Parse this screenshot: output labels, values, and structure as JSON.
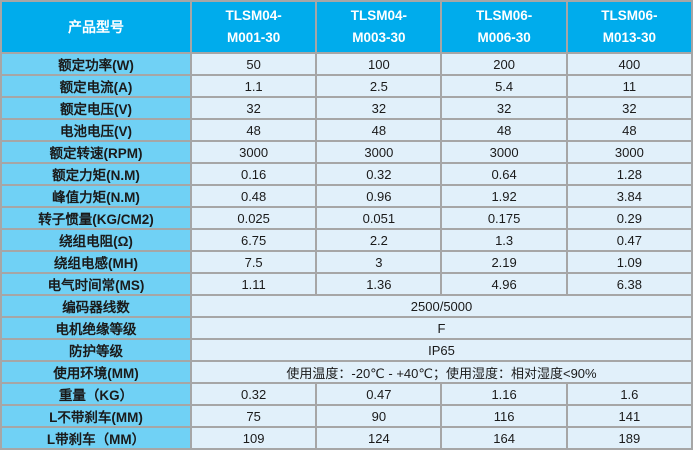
{
  "colors": {
    "header-bg": "#00acec",
    "label-bg": "#70d1f5",
    "cell-bg": "#e1f0fa",
    "grid": "#a6a6a6",
    "header-text": "#ffffff",
    "body-text": "#1a1a1a"
  },
  "table": {
    "header": {
      "label": "产品型号",
      "models": [
        "TLSM04-\nM001-30",
        "TLSM04-\nM003-30",
        "TLSM06-\nM006-30",
        "TLSM06-\nM013-30"
      ]
    },
    "rows": [
      {
        "label": "额定功率(W)",
        "values": [
          "50",
          "100",
          "200",
          "400"
        ]
      },
      {
        "label": "额定电流(A)",
        "values": [
          "1.1",
          "2.5",
          "5.4",
          "11"
        ]
      },
      {
        "label": "额定电压(V)",
        "values": [
          "32",
          "32",
          "32",
          "32"
        ]
      },
      {
        "label": "电池电压(V)",
        "values": [
          "48",
          "48",
          "48",
          "48"
        ]
      },
      {
        "label": "额定转速(RPM)",
        "values": [
          "3000",
          "3000",
          "3000",
          "3000"
        ]
      },
      {
        "label": "额定力矩(N.M)",
        "values": [
          "0.16",
          "0.32",
          "0.64",
          "1.28"
        ]
      },
      {
        "label": "峰值力矩(N.M)",
        "values": [
          "0.48",
          "0.96",
          "1.92",
          "3.84"
        ]
      },
      {
        "label": "转子惯量(KG/CM2)",
        "values": [
          "0.025",
          "0.051",
          "0.175",
          "0.29"
        ]
      },
      {
        "label": "绕组电阻(Ω)",
        "values": [
          "6.75",
          "2.2",
          "1.3",
          "0.47"
        ]
      },
      {
        "label": "绕组电感(MH)",
        "values": [
          "7.5",
          "3",
          "2.19",
          "1.09"
        ]
      },
      {
        "label": "电气时间常(MS)",
        "values": [
          "1.11",
          "1.36",
          "4.96",
          "6.38"
        ]
      },
      {
        "label": "编码器线数",
        "span": "2500/5000"
      },
      {
        "label": "电机绝缘等级",
        "span": "F"
      },
      {
        "label": "防护等级",
        "span": "IP65"
      },
      {
        "label": "使用环境(MM)",
        "span": "使用温度：-20℃ - +40℃；使用湿度：相对湿度<90%"
      },
      {
        "label": "重量（KG）",
        "values": [
          "0.32",
          "0.47",
          "1.16",
          "1.6"
        ]
      },
      {
        "label": "L不带刹车(MM)",
        "values": [
          "75",
          "90",
          "116",
          "141"
        ]
      },
      {
        "label": "L带刹车（MM）",
        "values": [
          "109",
          "124",
          "164",
          "189"
        ]
      }
    ]
  }
}
